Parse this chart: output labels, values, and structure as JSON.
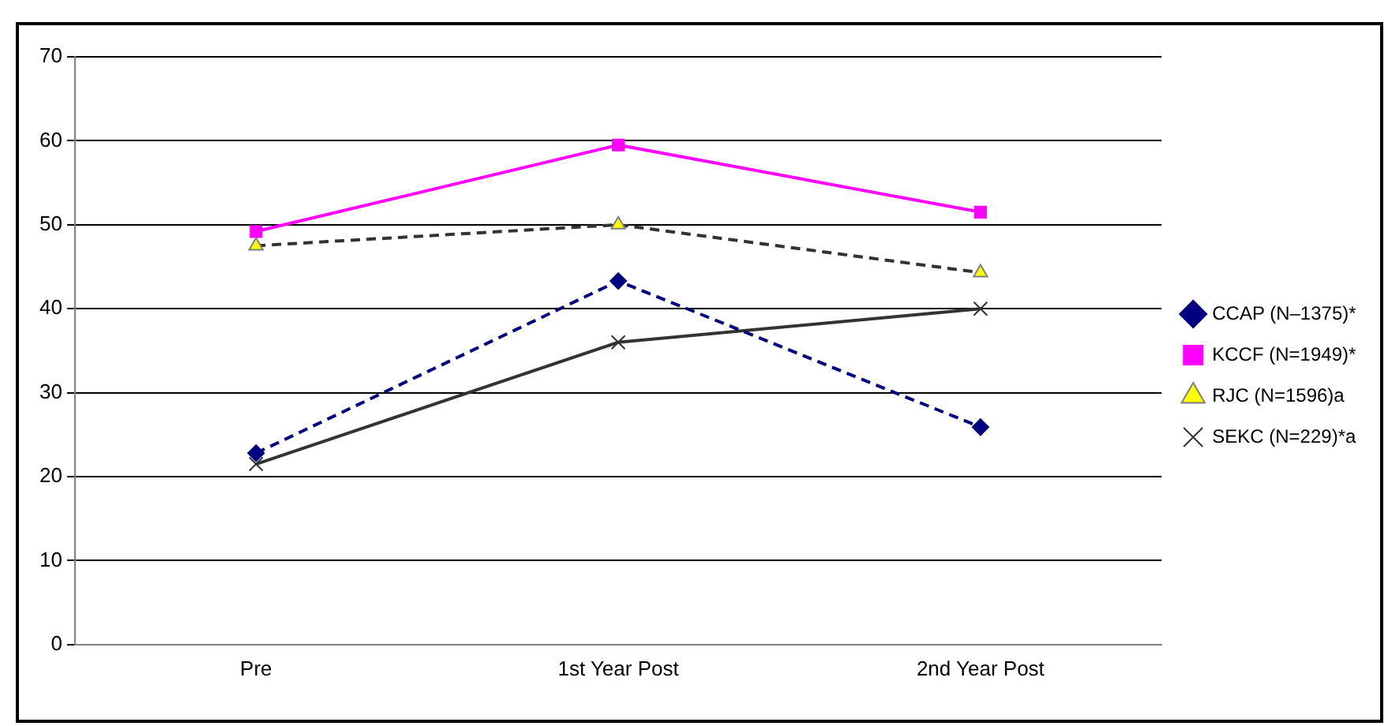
{
  "chart_data": {
    "type": "line",
    "categories": [
      "Pre",
      "1st Year Post",
      "2nd Year Post"
    ],
    "series": [
      {
        "name": "CCAP (N–1375)*",
        "color": "#000080",
        "values": [
          22.8,
          43.3,
          25.9
        ],
        "marker": "diamond",
        "line_style": "dashed"
      },
      {
        "name": "KCCF (N=1949)*",
        "color": "#ff00ff",
        "values": [
          49.2,
          59.5,
          51.5
        ],
        "marker": "square",
        "line_style": "solid"
      },
      {
        "name": "RJC (N=1596)a",
        "color": "#333333",
        "values": [
          47.5,
          50,
          44.3
        ],
        "marker": "triangle",
        "line_style": "dashed"
      },
      {
        "name": "SEKC (N=229)*a",
        "color": "#333333",
        "values": [
          21.5,
          36,
          40
        ],
        "marker": "cross",
        "line_style": "solid"
      }
    ],
    "ylim": [
      0,
      70
    ],
    "yticks": [
      0,
      10,
      20,
      30,
      40,
      50,
      60,
      70
    ],
    "grid": "y",
    "legend": "right"
  }
}
